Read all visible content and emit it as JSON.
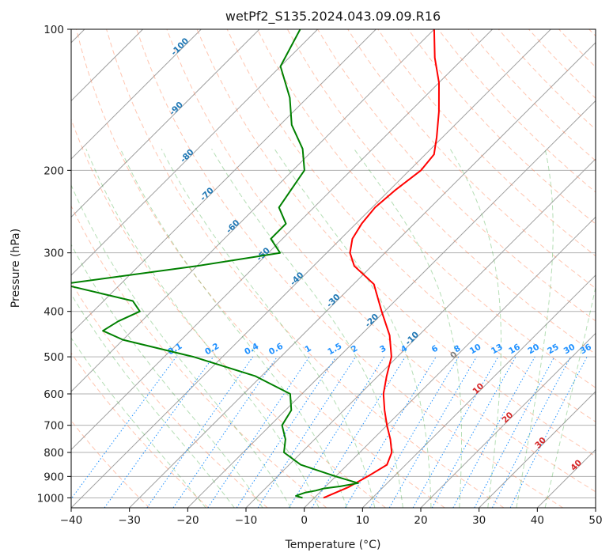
{
  "chart_data": {
    "type": "line",
    "title": "wetPf2_S135.2024.043.09.09.R16",
    "xlabel": "Temperature (°C)",
    "ylabel": "Pressure (hPa)",
    "xlim": [
      -40,
      50
    ],
    "ylim": [
      1050,
      100
    ],
    "y_scale": "log",
    "skew_t": true,
    "x_ticks": [
      -40,
      -30,
      -20,
      -10,
      0,
      10,
      20,
      30,
      40,
      50
    ],
    "y_ticks": [
      100,
      200,
      300,
      400,
      500,
      600,
      700,
      800,
      900,
      1000
    ],
    "grid": true,
    "series": [
      {
        "color": "#ff0000",
        "points": [
          [
            1000,
            1.6
          ],
          [
            950,
            4.0
          ],
          [
            900,
            5.5
          ],
          [
            850,
            6.8
          ],
          [
            800,
            5.5
          ],
          [
            750,
            3.0
          ],
          [
            700,
            0.0
          ],
          [
            650,
            -3.0
          ],
          [
            600,
            -6.0
          ],
          [
            550,
            -8.5
          ],
          [
            500,
            -11.0
          ],
          [
            450,
            -15.0
          ],
          [
            400,
            -20.5
          ],
          [
            350,
            -26.5
          ],
          [
            320,
            -33.0
          ],
          [
            300,
            -36.0
          ],
          [
            280,
            -38.0
          ],
          [
            260,
            -39.0
          ],
          [
            240,
            -39.5
          ],
          [
            220,
            -39.0
          ],
          [
            200,
            -38.0
          ],
          [
            185,
            -38.5
          ],
          [
            170,
            -41.0
          ],
          [
            150,
            -45.0
          ],
          [
            130,
            -50.0
          ],
          [
            115,
            -55.0
          ],
          [
            100,
            -60.0
          ]
        ]
      },
      {
        "color": "#008000",
        "points": [
          [
            1000,
            -2.0
          ],
          [
            990,
            -3.5
          ],
          [
            975,
            -2.5
          ],
          [
            965,
            -1.0
          ],
          [
            955,
            0.0
          ],
          [
            945,
            2.5
          ],
          [
            930,
            5.0
          ],
          [
            900,
            0.0
          ],
          [
            850,
            -8.0
          ],
          [
            800,
            -13.0
          ],
          [
            750,
            -15.0
          ],
          [
            700,
            -18.0
          ],
          [
            650,
            -19.0
          ],
          [
            600,
            -22.0
          ],
          [
            550,
            -31.0
          ],
          [
            500,
            -45.0
          ],
          [
            460,
            -60.0
          ],
          [
            440,
            -65.0
          ],
          [
            420,
            -64.0
          ],
          [
            400,
            -62.0
          ],
          [
            380,
            -65.0
          ],
          [
            350,
            -80.0
          ],
          [
            320,
            -60.0
          ],
          [
            300,
            -48.0
          ],
          [
            280,
            -52.0
          ],
          [
            260,
            -52.0
          ],
          [
            240,
            -56.0
          ],
          [
            200,
            -58.0
          ],
          [
            180,
            -62.0
          ],
          [
            160,
            -68.0
          ],
          [
            140,
            -73.0
          ],
          [
            120,
            -80.0
          ],
          [
            100,
            -83.0
          ]
        ]
      }
    ],
    "dry_adiabat_labels": [
      "-100",
      "-90",
      "-80",
      "-70",
      "-60",
      "-50",
      "-40",
      "-30",
      "-20",
      "-10",
      "0",
      "10",
      "20",
      "30",
      "40"
    ],
    "mixing_ratio_labels": [
      "0.1",
      "0.2",
      "0.4",
      "0.6",
      "1",
      "1.5",
      "2",
      "3",
      "4",
      "6",
      "8",
      "10",
      "13",
      "16",
      "20",
      "25",
      "30",
      "36"
    ],
    "colors": {
      "temperature": "#ff0000",
      "dewpoint": "#008000",
      "isotherms": "#a0a0a0",
      "dry_adiabats": "#ff7f50",
      "moist_adiabats": "#2ca02c",
      "mixing_ratio": "#1e90ff",
      "annotations_cold": "#1f77b4",
      "annotations_warm": "#d62728",
      "zero_label": "#808080"
    }
  }
}
